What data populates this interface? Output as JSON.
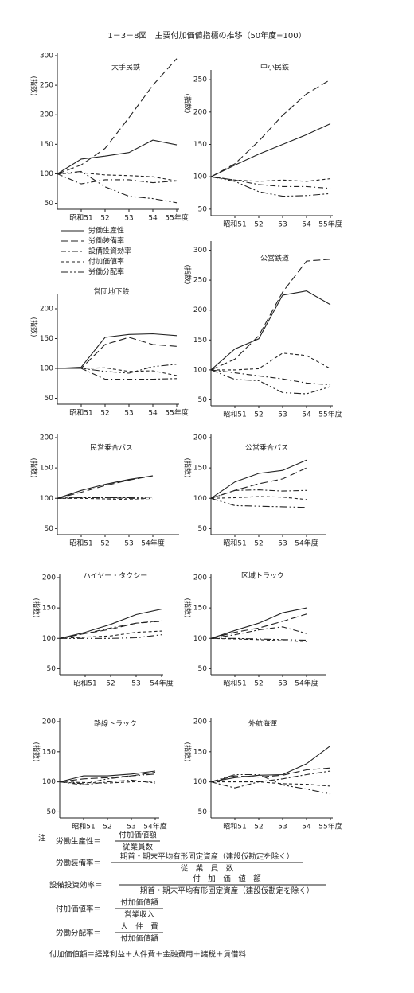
{
  "title": "1－3－8図　主要付加価値指標の推移（50年度=100）",
  "chart_data": [
    {
      "type": "line",
      "title": "大手民鉄",
      "ylabel": "(指数)",
      "color": "#222",
      "categories": [
        null,
        "昭和51",
        "52",
        "53",
        "54",
        "55年度"
      ],
      "ylim": [
        40,
        300
      ],
      "yticks": [
        50,
        100,
        150,
        200,
        250,
        300
      ],
      "series": [
        {
          "name": "労働生産性",
          "dash": "none",
          "values": [
            100,
            125,
            130,
            136,
            157,
            149
          ]
        },
        {
          "name": "労働装備率",
          "dash": "9,4",
          "values": [
            100,
            115,
            143,
            195,
            250,
            295
          ]
        },
        {
          "name": "設備投資効率",
          "dash": "7,3,2,3",
          "values": [
            100,
            83,
            90,
            90,
            85,
            88
          ]
        },
        {
          "name": "付加価値率",
          "dash": "4,3",
          "values": [
            100,
            102,
            98,
            97,
            95,
            88
          ]
        },
        {
          "name": "労働分配率",
          "dash": "9,3,2,3,2,3",
          "values": [
            100,
            104,
            78,
            62,
            58,
            51
          ]
        }
      ]
    },
    {
      "type": "line",
      "title": "中小民鉄",
      "ylabel": "(指数)",
      "color": "#222",
      "categories": [
        null,
        "昭和51",
        "52",
        "53",
        "54",
        "55年度"
      ],
      "ylim": [
        40,
        260
      ],
      "yticks": [
        50,
        100,
        150,
        200,
        250
      ],
      "series": [
        {
          "dash": "none",
          "values": [
            100,
            118,
            135,
            150,
            165,
            182
          ]
        },
        {
          "dash": "9,4",
          "values": [
            100,
            120,
            155,
            195,
            228,
            250
          ]
        },
        {
          "dash": "7,3,2,3",
          "values": [
            100,
            95,
            88,
            85,
            85,
            82
          ]
        },
        {
          "dash": "4,3",
          "values": [
            100,
            95,
            93,
            95,
            93,
            97
          ]
        },
        {
          "dash": "9,3,2,3,2,3",
          "values": [
            100,
            93,
            77,
            70,
            71,
            74
          ]
        }
      ]
    },
    {
      "type": "line",
      "title": "営団地下鉄",
      "ylabel": "(指数)",
      "color": "#222",
      "categories": [
        null,
        "昭和51",
        "52",
        "53",
        "54",
        "55年度"
      ],
      "ylim": [
        40,
        220
      ],
      "yticks": [
        50,
        100,
        150,
        200
      ],
      "series": [
        {
          "dash": "none",
          "values": [
            100,
            102,
            152,
            157,
            158,
            155
          ]
        },
        {
          "dash": "9,4",
          "values": [
            100,
            100,
            140,
            152,
            140,
            137
          ]
        },
        {
          "dash": "7,3,2,3",
          "values": [
            100,
            100,
            82,
            82,
            82,
            83
          ]
        },
        {
          "dash": "4,3",
          "values": [
            100,
            100,
            101,
            95,
            96,
            88
          ]
        },
        {
          "dash": "9,3,2,3,2,3",
          "values": [
            100,
            100,
            95,
            92,
            103,
            107
          ]
        }
      ]
    },
    {
      "type": "line",
      "title": "公営鉄道",
      "ylabel": "(指数)",
      "color": "#222",
      "categories": [
        null,
        "昭和51",
        "52",
        "53",
        "54",
        "55年度"
      ],
      "ylim": [
        40,
        310
      ],
      "yticks": [
        50,
        100,
        150,
        200,
        250,
        300
      ],
      "series": [
        {
          "dash": "none",
          "values": [
            100,
            135,
            152,
            225,
            232,
            209
          ]
        },
        {
          "dash": "9,4",
          "values": [
            100,
            118,
            157,
            230,
            282,
            285
          ]
        },
        {
          "dash": "7,3,2,3",
          "values": [
            100,
            95,
            90,
            85,
            78,
            75
          ]
        },
        {
          "dash": "4,3",
          "values": [
            100,
            100,
            102,
            128,
            124,
            102
          ]
        },
        {
          "dash": "9,3,2,3,2,3",
          "values": [
            100,
            84,
            82,
            62,
            60,
            72
          ]
        }
      ]
    },
    {
      "type": "line",
      "title": "民営乗合バス",
      "ylabel": "(指数)",
      "color": "#222",
      "categories": [
        null,
        "昭和51",
        "52",
        "53",
        "54年度"
      ],
      "ylim": [
        40,
        200
      ],
      "yticks": [
        50,
        100,
        150,
        200
      ],
      "series": [
        {
          "dash": "none",
          "values": [
            100,
            113,
            123,
            131,
            137
          ]
        },
        {
          "dash": "9,4",
          "values": [
            100,
            110,
            121,
            130,
            137
          ]
        },
        {
          "dash": "7,3,2,3",
          "values": [
            100,
            102,
            101,
            100,
            100
          ]
        },
        {
          "dash": "4,3",
          "values": [
            100,
            100,
            99,
            98,
            97
          ]
        },
        {
          "dash": "9,3,2,3,2,3",
          "values": [
            100,
            101,
            101,
            101,
            102
          ]
        }
      ]
    },
    {
      "type": "line",
      "title": "公営乗合バス",
      "ylabel": "(指数)",
      "color": "#222",
      "categories": [
        null,
        "昭和51",
        "52",
        "53",
        "54年度"
      ],
      "ylim": [
        40,
        200
      ],
      "yticks": [
        50,
        100,
        150,
        200
      ],
      "series": [
        {
          "dash": "none",
          "values": [
            100,
            127,
            141,
            146,
            163
          ]
        },
        {
          "dash": "9,4",
          "values": [
            100,
            113,
            124,
            132,
            150
          ]
        },
        {
          "dash": "7,3,2,3",
          "values": [
            100,
            113,
            114,
            112,
            113
          ]
        },
        {
          "dash": "4,3",
          "values": [
            100,
            101,
            103,
            102,
            98
          ]
        },
        {
          "dash": "9,3,2,3,2,3",
          "values": [
            100,
            88,
            87,
            86,
            85
          ]
        }
      ]
    },
    {
      "type": "line",
      "title": "ハイヤー・タクシー",
      "ylabel": "(指数)",
      "color": "#222",
      "categories": [
        null,
        "昭和51",
        "52",
        "53",
        "54年度"
      ],
      "ylim": [
        40,
        200
      ],
      "yticks": [
        50,
        100,
        150,
        200
      ],
      "series": [
        {
          "dash": "none",
          "values": [
            100,
            110,
            123,
            139,
            148
          ]
        },
        {
          "dash": "9,4",
          "values": [
            100,
            108,
            115,
            125,
            129
          ]
        },
        {
          "dash": "7,3,2,3",
          "values": [
            100,
            108,
            117,
            125,
            128
          ]
        },
        {
          "dash": "4,3",
          "values": [
            100,
            102,
            104,
            110,
            112
          ]
        },
        {
          "dash": "9,3,2,3,2,3",
          "values": [
            100,
            100,
            100,
            101,
            106
          ]
        }
      ]
    },
    {
      "type": "line",
      "title": "区域トラック",
      "ylabel": "(指数)",
      "color": "#222",
      "categories": [
        null,
        "昭和51",
        "52",
        "53",
        "54年度"
      ],
      "ylim": [
        40,
        200
      ],
      "yticks": [
        50,
        100,
        150,
        200
      ],
      "series": [
        {
          "dash": "none",
          "values": [
            100,
            113,
            125,
            142,
            150
          ]
        },
        {
          "dash": "9,4",
          "values": [
            100,
            110,
            117,
            128,
            140
          ]
        },
        {
          "dash": "7,3,2,3",
          "values": [
            100,
            106,
            114,
            119,
            108
          ]
        },
        {
          "dash": "4,3",
          "values": [
            100,
            99,
            98,
            96,
            95
          ]
        },
        {
          "dash": "9,3,2,3,2,3",
          "values": [
            100,
            100,
            99,
            98,
            97
          ]
        }
      ]
    },
    {
      "type": "line",
      "title": "路線トラック",
      "ylabel": "(指数)",
      "color": "#222",
      "categories": [
        null,
        "昭和51",
        "52",
        "53",
        "54年度"
      ],
      "ylim": [
        40,
        200
      ],
      "yticks": [
        50,
        100,
        150,
        200
      ],
      "series": [
        {
          "dash": "none",
          "values": [
            100,
            110,
            110,
            113,
            118
          ]
        },
        {
          "dash": "9,4",
          "values": [
            100,
            105,
            107,
            110,
            116
          ]
        },
        {
          "dash": "7,3,2,3",
          "values": [
            100,
            95,
            100,
            103,
            98
          ]
        },
        {
          "dash": "4,3",
          "values": [
            100,
            99,
            98,
            100,
            101
          ]
        },
        {
          "dash": "9,3,2,3,2,3",
          "values": [
            100,
            97,
            105,
            110,
            113
          ]
        }
      ]
    },
    {
      "type": "line",
      "title": "外航海運",
      "ylabel": "(指数)",
      "color": "#222",
      "categories": [
        null,
        "昭和51",
        "52",
        "53",
        "54",
        "55年度"
      ],
      "ylim": [
        40,
        200
      ],
      "yticks": [
        50,
        100,
        150,
        200
      ],
      "series": [
        {
          "dash": "none",
          "values": [
            100,
            107,
            111,
            112,
            130,
            160
          ]
        },
        {
          "dash": "9,4",
          "values": [
            100,
            110,
            108,
            111,
            120,
            123
          ]
        },
        {
          "dash": "7,3,2,3",
          "values": [
            100,
            90,
            100,
            105,
            112,
            118
          ]
        },
        {
          "dash": "4,3",
          "values": [
            100,
            100,
            100,
            97,
            96,
            93
          ]
        },
        {
          "dash": "9,3,2,3,2,3",
          "values": [
            100,
            112,
            112,
            95,
            88,
            80
          ]
        }
      ]
    }
  ],
  "notes": {
    "label": "注",
    "formulas": [
      {
        "term": "労働生産性＝",
        "num": "付加価値額",
        "den": "従業員数"
      },
      {
        "term": "労働装備率＝",
        "num": "期首・期末平均有形固定資産（建設仮勘定を除く）",
        "den": "従　業　員　数"
      },
      {
        "term": "設備投資効率＝",
        "num": "付　加　価　値　額",
        "den": "期首・期末平均有形固定資産（建設仮勘定を除く）"
      },
      {
        "term": "付加価値率＝",
        "num": "付加価値額",
        "den": "営業収入"
      },
      {
        "term": "労働分配率＝",
        "num": "人　件　費",
        "den": "付加価値額"
      }
    ],
    "definition": "付加価値額＝経常利益＋人件費＋金融費用＋諸税＋賃借料"
  }
}
